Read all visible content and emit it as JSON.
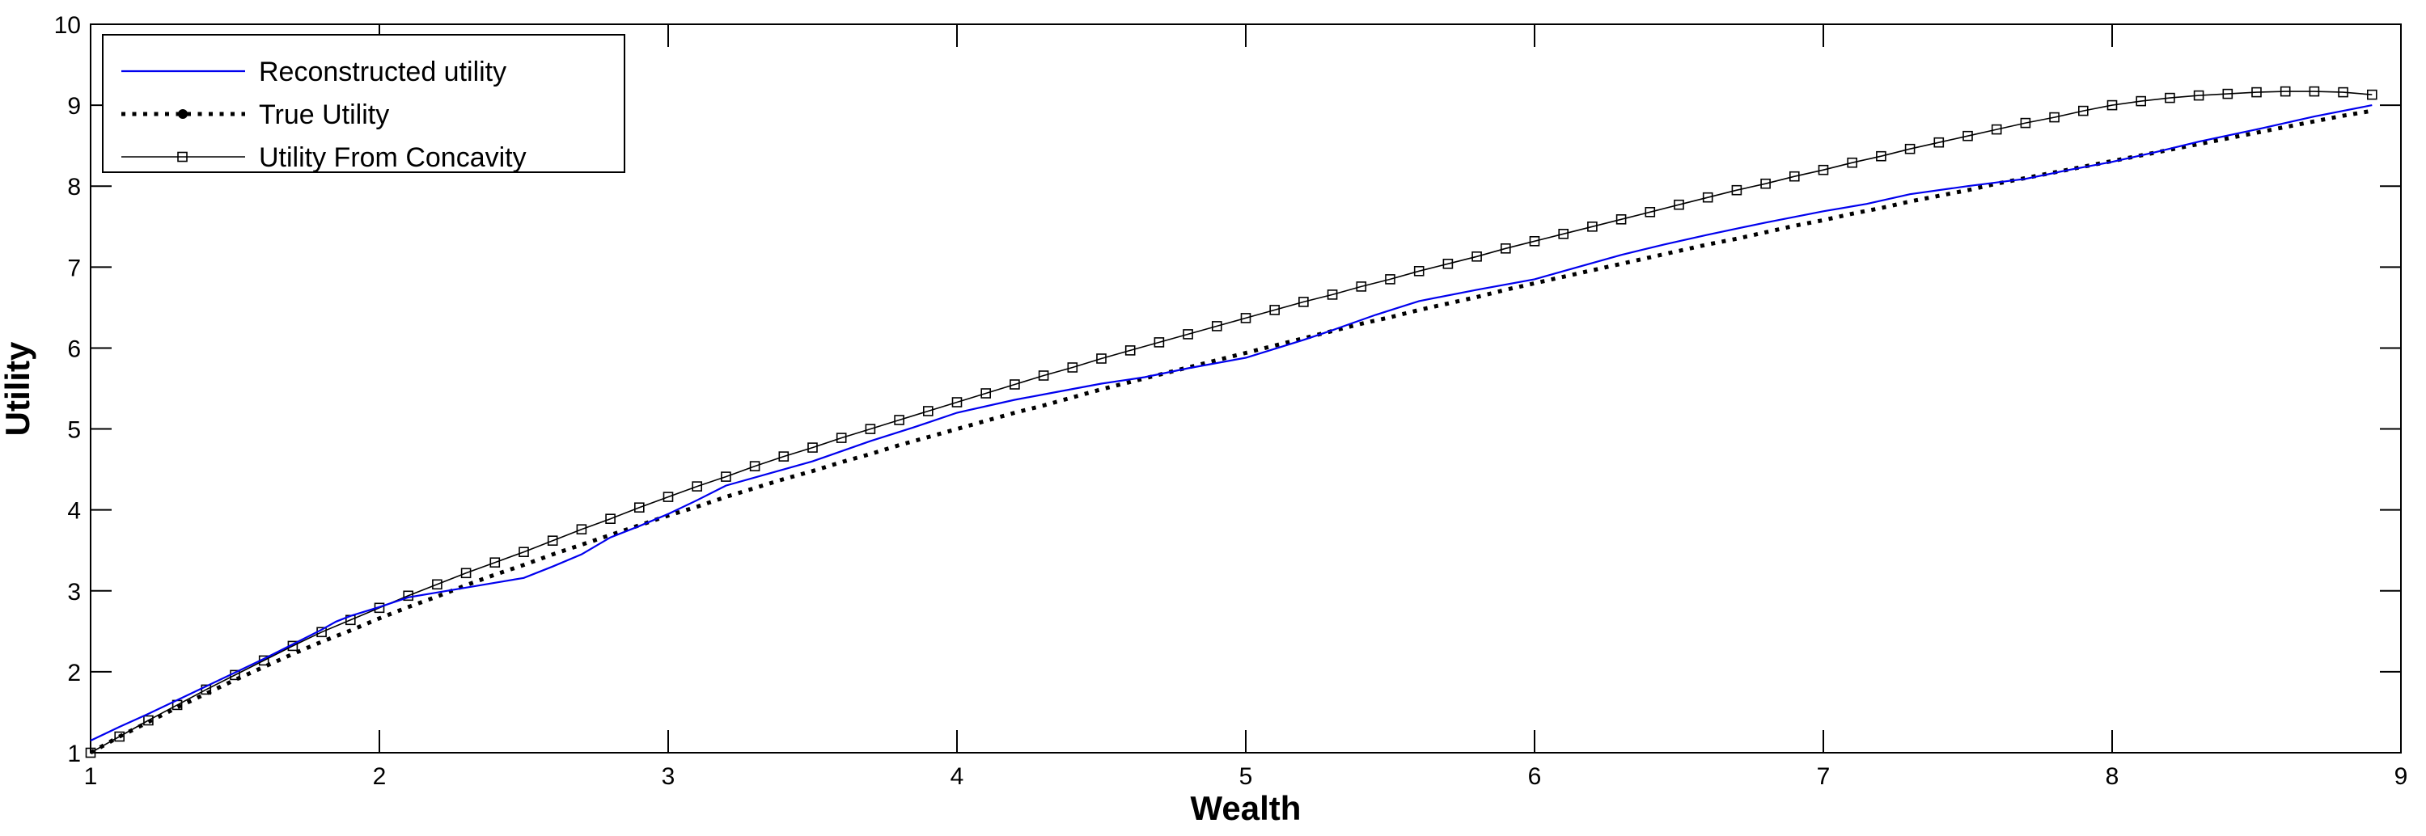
{
  "figure": {
    "background": "#ffffff",
    "axis_color": "#000000"
  },
  "chart_data": {
    "type": "line",
    "title": "",
    "xlabel": "Wealth",
    "ylabel": "Utility",
    "xlim": [
      1,
      9
    ],
    "ylim": [
      1,
      10
    ],
    "xticks": [
      1,
      2,
      3,
      4,
      5,
      6,
      7,
      8,
      9
    ],
    "yticks": [
      1,
      2,
      3,
      4,
      5,
      6,
      7,
      8,
      9,
      10
    ],
    "grid": false,
    "legend_position": "top-left",
    "series": [
      {
        "name": "Reconstructed utility",
        "color": "#0000EE",
        "style": "solid",
        "line_width": 2.2,
        "marker": "none",
        "points": [
          [
            1.0,
            1.15
          ],
          [
            1.1,
            1.32
          ],
          [
            1.2,
            1.48
          ],
          [
            1.3,
            1.65
          ],
          [
            1.4,
            1.82
          ],
          [
            1.5,
            1.99
          ],
          [
            1.6,
            2.16
          ],
          [
            1.7,
            2.34
          ],
          [
            1.8,
            2.52
          ],
          [
            1.85,
            2.62
          ],
          [
            1.9,
            2.69
          ],
          [
            2.0,
            2.8
          ],
          [
            2.1,
            2.92
          ],
          [
            2.2,
            2.98
          ],
          [
            2.3,
            3.04
          ],
          [
            2.4,
            3.1
          ],
          [
            2.5,
            3.16
          ],
          [
            2.6,
            3.3
          ],
          [
            2.7,
            3.45
          ],
          [
            2.8,
            3.66
          ],
          [
            2.9,
            3.8
          ],
          [
            3.0,
            3.95
          ],
          [
            3.1,
            4.12
          ],
          [
            3.2,
            4.3
          ],
          [
            3.35,
            4.45
          ],
          [
            3.5,
            4.6
          ],
          [
            3.7,
            4.85
          ],
          [
            3.85,
            5.02
          ],
          [
            4.0,
            5.2
          ],
          [
            4.2,
            5.36
          ],
          [
            4.35,
            5.46
          ],
          [
            4.5,
            5.56
          ],
          [
            4.65,
            5.64
          ],
          [
            4.8,
            5.75
          ],
          [
            5.0,
            5.88
          ],
          [
            5.2,
            6.1
          ],
          [
            5.3,
            6.22
          ],
          [
            5.45,
            6.41
          ],
          [
            5.6,
            6.58
          ],
          [
            5.8,
            6.72
          ],
          [
            6.0,
            6.85
          ],
          [
            6.15,
            7.0
          ],
          [
            6.3,
            7.15
          ],
          [
            6.45,
            7.28
          ],
          [
            6.6,
            7.4
          ],
          [
            6.8,
            7.55
          ],
          [
            7.0,
            7.69
          ],
          [
            7.15,
            7.78
          ],
          [
            7.3,
            7.9
          ],
          [
            7.5,
            8.0
          ],
          [
            7.7,
            8.09
          ],
          [
            7.85,
            8.2
          ],
          [
            8.0,
            8.3
          ],
          [
            8.15,
            8.42
          ],
          [
            8.3,
            8.55
          ],
          [
            8.5,
            8.7
          ],
          [
            8.7,
            8.86
          ],
          [
            8.9,
            9.0
          ]
        ]
      },
      {
        "name": "True Utility",
        "color": "#000000",
        "style": "dotted",
        "line_width": 5,
        "marker": "none",
        "points": [
          [
            1.0,
            1.0
          ],
          [
            1.1,
            1.2
          ],
          [
            1.2,
            1.38
          ],
          [
            1.3,
            1.56
          ],
          [
            1.4,
            1.73
          ],
          [
            1.5,
            1.9
          ],
          [
            1.6,
            2.06
          ],
          [
            1.7,
            2.22
          ],
          [
            1.8,
            2.37
          ],
          [
            1.9,
            2.51
          ],
          [
            2.0,
            2.66
          ],
          [
            2.1,
            2.8
          ],
          [
            2.2,
            2.93
          ],
          [
            2.3,
            3.07
          ],
          [
            2.4,
            3.2
          ],
          [
            2.5,
            3.32
          ],
          [
            2.6,
            3.45
          ],
          [
            2.7,
            3.57
          ],
          [
            2.8,
            3.69
          ],
          [
            2.9,
            3.81
          ],
          [
            3.0,
            3.93
          ],
          [
            3.1,
            4.04
          ],
          [
            3.2,
            4.16
          ],
          [
            3.3,
            4.27
          ],
          [
            3.4,
            4.38
          ],
          [
            3.5,
            4.48
          ],
          [
            3.6,
            4.59
          ],
          [
            3.7,
            4.69
          ],
          [
            3.8,
            4.8
          ],
          [
            3.9,
            4.9
          ],
          [
            4.0,
            5.0
          ],
          [
            4.1,
            5.1
          ],
          [
            4.2,
            5.2
          ],
          [
            4.3,
            5.29
          ],
          [
            4.4,
            5.39
          ],
          [
            4.5,
            5.49
          ],
          [
            4.6,
            5.58
          ],
          [
            4.7,
            5.67
          ],
          [
            4.8,
            5.76
          ],
          [
            4.9,
            5.85
          ],
          [
            5.0,
            5.94
          ],
          [
            5.1,
            6.03
          ],
          [
            5.2,
            6.12
          ],
          [
            5.3,
            6.21
          ],
          [
            5.4,
            6.3
          ],
          [
            5.5,
            6.38
          ],
          [
            5.6,
            6.47
          ],
          [
            5.7,
            6.55
          ],
          [
            5.8,
            6.63
          ],
          [
            5.9,
            6.72
          ],
          [
            6.0,
            6.8
          ],
          [
            6.1,
            6.88
          ],
          [
            6.2,
            6.96
          ],
          [
            6.3,
            7.04
          ],
          [
            6.4,
            7.12
          ],
          [
            6.5,
            7.2
          ],
          [
            6.6,
            7.28
          ],
          [
            6.7,
            7.35
          ],
          [
            6.8,
            7.43
          ],
          [
            6.9,
            7.51
          ],
          [
            7.0,
            7.58
          ],
          [
            7.1,
            7.66
          ],
          [
            7.2,
            7.73
          ],
          [
            7.3,
            7.81
          ],
          [
            7.4,
            7.88
          ],
          [
            7.5,
            7.95
          ],
          [
            7.6,
            8.03
          ],
          [
            7.7,
            8.1
          ],
          [
            7.8,
            8.17
          ],
          [
            7.9,
            8.24
          ],
          [
            8.0,
            8.31
          ],
          [
            8.1,
            8.38
          ],
          [
            8.2,
            8.45
          ],
          [
            8.3,
            8.52
          ],
          [
            8.4,
            8.59
          ],
          [
            8.5,
            8.66
          ],
          [
            8.6,
            8.73
          ],
          [
            8.7,
            8.8
          ],
          [
            8.8,
            8.87
          ],
          [
            8.9,
            8.93
          ]
        ]
      },
      {
        "name": "Utility From Concavity",
        "color": "#000000",
        "style": "solid",
        "line_width": 1.6,
        "marker": "square",
        "points": [
          [
            1.0,
            1.0
          ],
          [
            1.1,
            1.2
          ],
          [
            1.2,
            1.4
          ],
          [
            1.3,
            1.59
          ],
          [
            1.4,
            1.78
          ],
          [
            1.5,
            1.96
          ],
          [
            1.6,
            2.14
          ],
          [
            1.7,
            2.32
          ],
          [
            1.8,
            2.49
          ],
          [
            1.9,
            2.64
          ],
          [
            2.0,
            2.79
          ],
          [
            2.1,
            2.94
          ],
          [
            2.2,
            3.08
          ],
          [
            2.3,
            3.22
          ],
          [
            2.4,
            3.35
          ],
          [
            2.5,
            3.48
          ],
          [
            2.6,
            3.62
          ],
          [
            2.7,
            3.76
          ],
          [
            2.8,
            3.89
          ],
          [
            2.9,
            4.03
          ],
          [
            3.0,
            4.16
          ],
          [
            3.1,
            4.29
          ],
          [
            3.2,
            4.41
          ],
          [
            3.3,
            4.54
          ],
          [
            3.4,
            4.66
          ],
          [
            3.5,
            4.77
          ],
          [
            3.6,
            4.89
          ],
          [
            3.7,
            5.0
          ],
          [
            3.8,
            5.11
          ],
          [
            3.9,
            5.22
          ],
          [
            4.0,
            5.33
          ],
          [
            4.1,
            5.44
          ],
          [
            4.2,
            5.55
          ],
          [
            4.3,
            5.66
          ],
          [
            4.4,
            5.76
          ],
          [
            4.5,
            5.87
          ],
          [
            4.6,
            5.97
          ],
          [
            4.7,
            6.07
          ],
          [
            4.8,
            6.17
          ],
          [
            4.9,
            6.27
          ],
          [
            5.0,
            6.37
          ],
          [
            5.1,
            6.47
          ],
          [
            5.2,
            6.57
          ],
          [
            5.3,
            6.66
          ],
          [
            5.4,
            6.76
          ],
          [
            5.5,
            6.85
          ],
          [
            5.6,
            6.95
          ],
          [
            5.7,
            7.04
          ],
          [
            5.8,
            7.13
          ],
          [
            5.9,
            7.23
          ],
          [
            6.0,
            7.32
          ],
          [
            6.1,
            7.41
          ],
          [
            6.2,
            7.5
          ],
          [
            6.3,
            7.59
          ],
          [
            6.4,
            7.68
          ],
          [
            6.5,
            7.77
          ],
          [
            6.6,
            7.86
          ],
          [
            6.7,
            7.95
          ],
          [
            6.8,
            8.03
          ],
          [
            6.9,
            8.12
          ],
          [
            7.0,
            8.2
          ],
          [
            7.1,
            8.29
          ],
          [
            7.2,
            8.37
          ],
          [
            7.3,
            8.46
          ],
          [
            7.4,
            8.54
          ],
          [
            7.5,
            8.62
          ],
          [
            7.6,
            8.7
          ],
          [
            7.7,
            8.78
          ],
          [
            7.8,
            8.85
          ],
          [
            7.9,
            8.93
          ],
          [
            8.0,
            9.0
          ],
          [
            8.1,
            9.05
          ],
          [
            8.2,
            9.09
          ],
          [
            8.3,
            9.12
          ],
          [
            8.4,
            9.14
          ],
          [
            8.5,
            9.16
          ],
          [
            8.6,
            9.17
          ],
          [
            8.7,
            9.17
          ],
          [
            8.8,
            9.16
          ],
          [
            8.9,
            9.13
          ]
        ]
      }
    ]
  }
}
